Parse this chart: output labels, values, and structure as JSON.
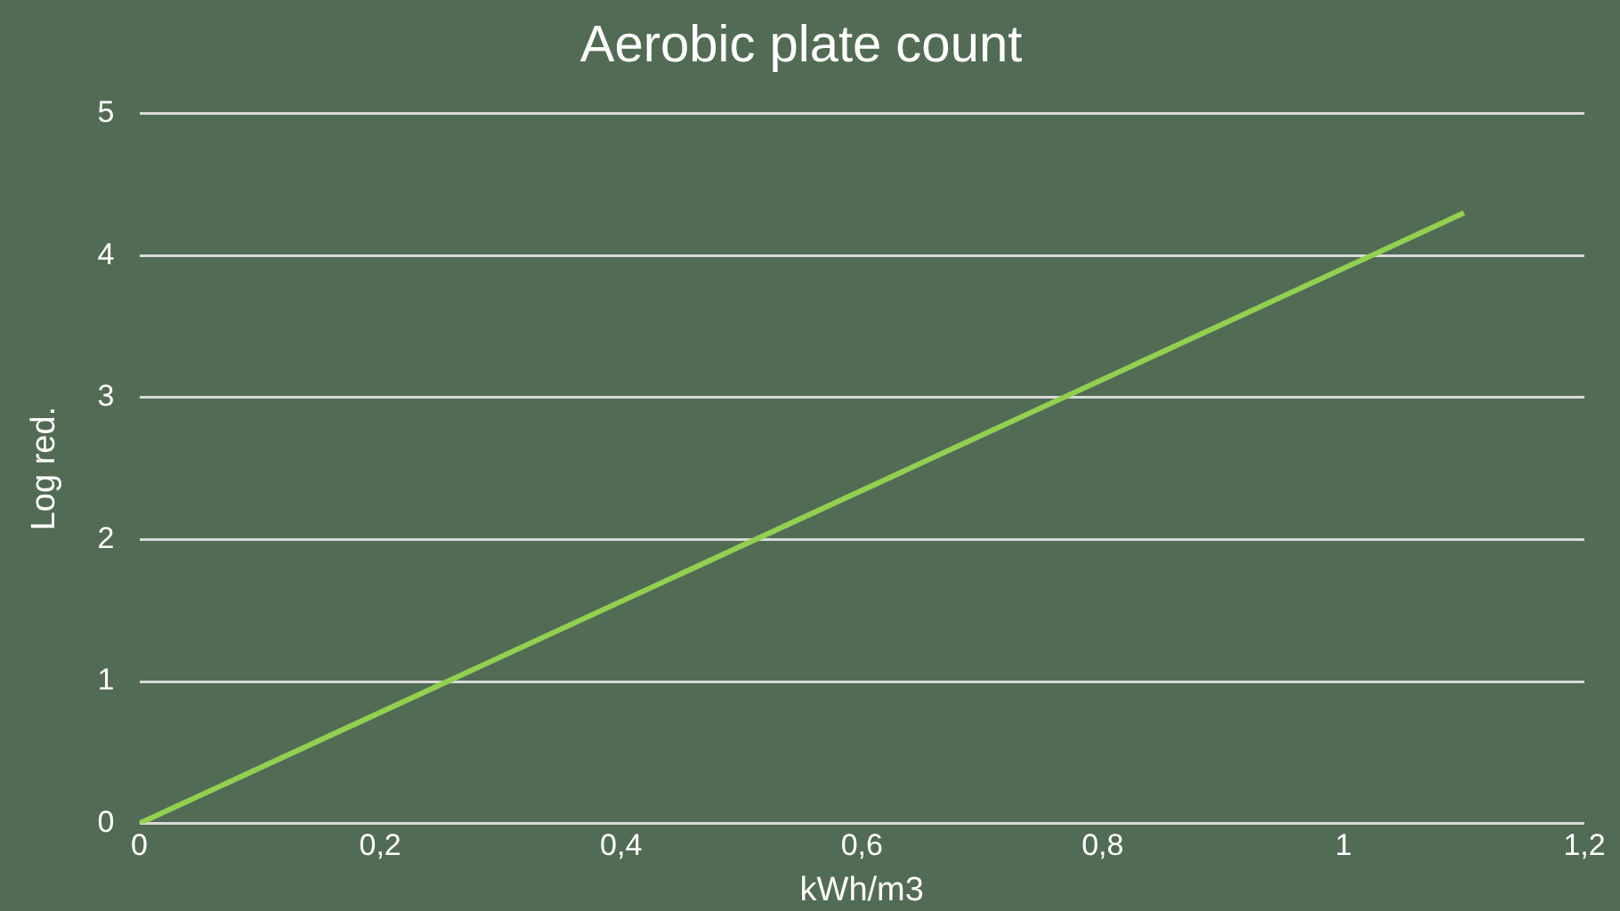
{
  "chart_data": {
    "type": "line",
    "title": "Aerobic plate count",
    "xlabel": "kWh/m3",
    "ylabel": "Log red.",
    "x": [
      0,
      1.1
    ],
    "series": [
      {
        "color": "#92d050",
        "values": [
          0,
          4.3
        ]
      }
    ],
    "xlim": [
      0,
      1.2
    ],
    "xticks": [
      0,
      {
        "value": 0.2,
        "label": "0,2"
      },
      {
        "value": 0.4,
        "label": "0,4"
      },
      {
        "value": 0.6,
        "label": "0,6"
      },
      {
        "value": 0.8,
        "label": "0,8"
      },
      1,
      {
        "value": 1.2,
        "label": "1,2"
      }
    ],
    "ylim": [
      0,
      5
    ],
    "yticks": [
      0,
      1,
      2,
      3,
      4,
      5
    ],
    "grid": "y",
    "legend": false,
    "marker": "none",
    "line_style": "solid"
  }
}
